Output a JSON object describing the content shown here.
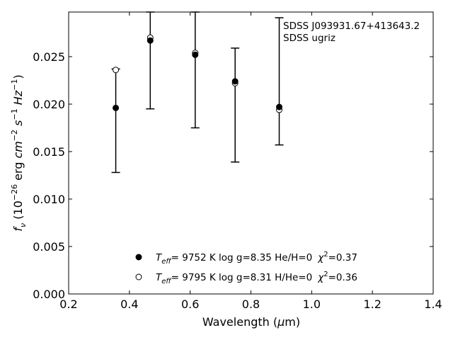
{
  "chart_data": {
    "type": "scatter",
    "xlabel_prefix": "Wavelength (",
    "xlabel_unit_mu": "μ",
    "xlabel_unit_rest": "m)",
    "ylabel": "f_ν (10^-26 erg cm^-2 s^-1 Hz^-1)",
    "xlim": [
      0.2,
      1.4
    ],
    "ylim": [
      0.0,
      0.0297
    ],
    "xticks": [
      "0.2",
      "0.4",
      "0.6",
      "0.8",
      "1.0",
      "1.2",
      "1.4"
    ],
    "yticks": [
      "0.000",
      "0.005",
      "0.010",
      "0.015",
      "0.020",
      "0.025"
    ],
    "annotations": [
      "SDSS J093931.67+413643.2",
      "SDSS ugriz"
    ],
    "observed": {
      "x": [
        0.3551,
        0.4686,
        0.6166,
        0.748,
        0.8932
      ],
      "y": [
        0.0196,
        0.0267,
        0.0252,
        0.0224,
        0.0196
      ],
      "yerr_low": [
        0.0128,
        0.0195,
        0.0175,
        0.0139,
        0.0157
      ],
      "yerr_high": [
        0.0237,
        0.0297,
        0.0297,
        0.0259,
        0.0291
      ]
    },
    "series": [
      {
        "marker": "filled-circle",
        "x": [
          0.3551,
          0.4686,
          0.6166,
          0.748,
          0.8932
        ],
        "values": [
          0.0196,
          0.0267,
          0.0252,
          0.0224,
          0.0197
        ],
        "legend": {
          "teff_label": "T",
          "teff_sub": "eff",
          "text": "=  9752 K  log g=8.35  He/H=0",
          "chi_label": "χ",
          "chi_sup": "2",
          "chi_value": "=0.37"
        }
      },
      {
        "marker": "open-circle",
        "x": [
          0.3551,
          0.4686,
          0.6166,
          0.748,
          0.8932
        ],
        "values": [
          0.0236,
          0.027,
          0.0254,
          0.0222,
          0.0194
        ],
        "legend": {
          "teff_label": "T",
          "teff_sub": "eff",
          "text": "=  9795 K  log g=8.31  H/He=0",
          "chi_label": "χ",
          "chi_sup": "2",
          "chi_value": "=0.36"
        }
      }
    ]
  }
}
